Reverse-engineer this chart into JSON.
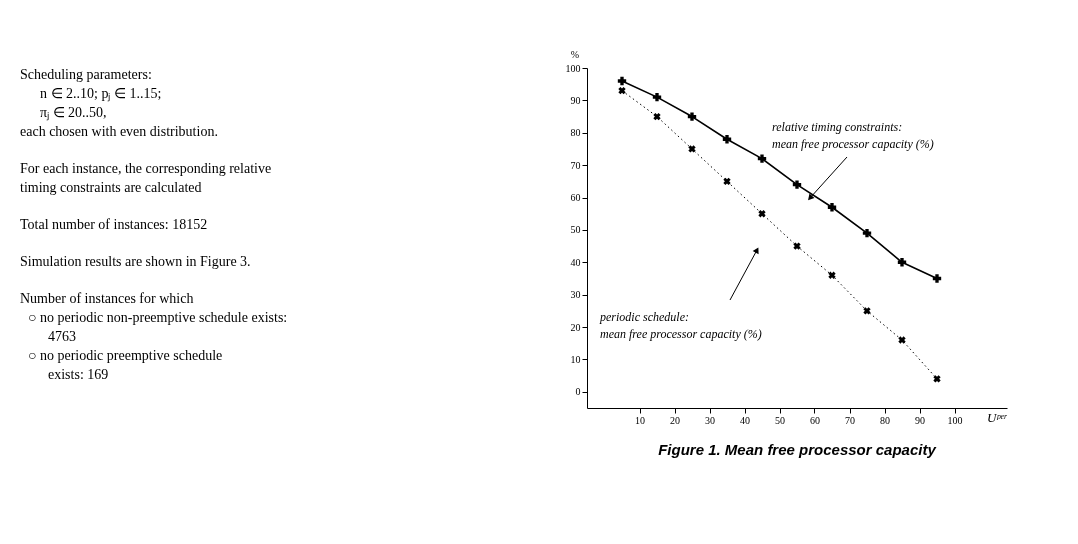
{
  "chart_data": {
    "type": "line",
    "title": "Figure 1. Mean free processor capacity",
    "xlabel": "Uᵖᵉʳ",
    "ylabel": "%",
    "x": [
      5,
      15,
      25,
      35,
      45,
      55,
      65,
      75,
      85,
      95
    ],
    "series": [
      {
        "values": [
          96,
          91,
          85,
          78,
          72,
          64,
          57,
          49,
          40,
          35
        ],
        "color": "#000000",
        "marker": "cross",
        "line_style": "solid"
      },
      {
        "values": [
          93,
          85,
          75,
          65,
          55,
          45,
          36,
          25,
          16,
          4
        ],
        "color": "#000000",
        "marker": "cross",
        "line_style": "dotted"
      }
    ],
    "xlim": [
      -5,
      115
    ],
    "xticks": [
      10,
      20,
      30,
      40,
      50,
      60,
      70,
      80,
      90,
      100
    ],
    "ylim": [
      -5,
      100
    ],
    "yticks": [
      0,
      10,
      20,
      30,
      40,
      50,
      60,
      70,
      80,
      90,
      100
    ],
    "grid": false,
    "annotations": [
      "relative timing constraints:\nmean free processor capacity (%)",
      "periodic schedule:\nmean free processor capacity (%)",
      "Scheduling parameters:\n     n ∈ 2..10;  pⱼ ∈ 1..15;\n     πⱼ ∈ 20..50,\neach chosen with even distribution.",
      "For each instance, the corresponding relative\ntiming constraints are calculated",
      "Total number of instances: 18152",
      "Simulation results are shown in Figure 3.",
      "Number of instances for which\n  ○  no periodic non-preemptive schedule exists:\n       4763\n  ○  no periodic preemptive schedule\n       exists: 169"
    ]
  }
}
